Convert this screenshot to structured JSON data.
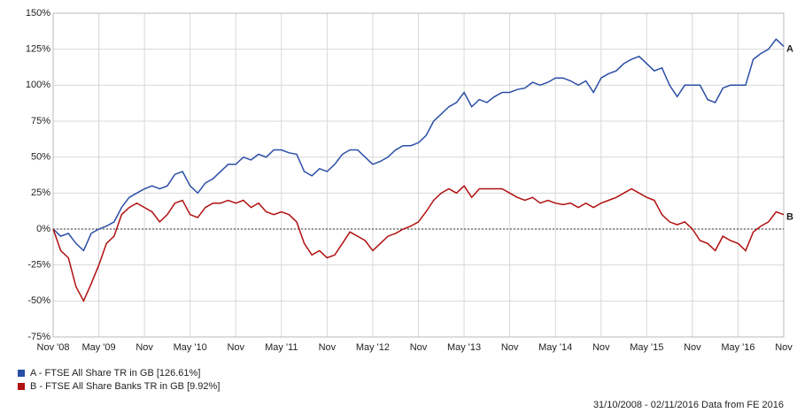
{
  "chart_data": {
    "type": "line",
    "x": [
      "Nov '08",
      "Dec '08",
      "Jan '09",
      "Feb '09",
      "Mar '09",
      "Apr '09",
      "May '09",
      "Jun '09",
      "Jul '09",
      "Aug '09",
      "Sep '09",
      "Oct '09",
      "Nov '09",
      "Dec '09",
      "Jan '10",
      "Feb '10",
      "Mar '10",
      "Apr '10",
      "May '10",
      "Jun '10",
      "Jul '10",
      "Aug '10",
      "Sep '10",
      "Oct '10",
      "Nov '10",
      "Dec '10",
      "Jan '11",
      "Feb '11",
      "Mar '11",
      "Apr '11",
      "May '11",
      "Jun '11",
      "Jul '11",
      "Aug '11",
      "Sep '11",
      "Oct '11",
      "Nov '11",
      "Dec '11",
      "Jan '12",
      "Feb '12",
      "Mar '12",
      "Apr '12",
      "May '12",
      "Jun '12",
      "Jul '12",
      "Aug '12",
      "Sep '12",
      "Oct '12",
      "Nov '12",
      "Dec '12",
      "Jan '13",
      "Feb '13",
      "Mar '13",
      "Apr '13",
      "May '13",
      "Jun '13",
      "Jul '13",
      "Aug '13",
      "Sep '13",
      "Oct '13",
      "Nov '13",
      "Dec '13",
      "Jan '14",
      "Feb '14",
      "Mar '14",
      "Apr '14",
      "May '14",
      "Jun '14",
      "Jul '14",
      "Aug '14",
      "Sep '14",
      "Oct '14",
      "Nov '14",
      "Dec '14",
      "Jan '15",
      "Feb '15",
      "Mar '15",
      "Apr '15",
      "May '15",
      "Jun '15",
      "Jul '15",
      "Aug '15",
      "Sep '15",
      "Oct '15",
      "Nov '15",
      "Dec '15",
      "Jan '16",
      "Feb '16",
      "Mar '16",
      "Apr '16",
      "May '16",
      "Jun '16",
      "Jul '16",
      "Aug '16",
      "Sep '16",
      "Oct '16",
      "Nov '16"
    ],
    "series": [
      {
        "name": "A - FTSE All Share TR in GB [126.61%]",
        "color": "#2a4ea6",
        "values": [
          0,
          -5,
          -3,
          -10,
          -15,
          -3,
          0,
          2,
          5,
          15,
          22,
          25,
          28,
          30,
          28,
          30,
          38,
          40,
          30,
          25,
          32,
          35,
          40,
          45,
          45,
          50,
          48,
          52,
          50,
          55,
          55,
          53,
          52,
          40,
          37,
          42,
          40,
          45,
          52,
          55,
          55,
          50,
          45,
          47,
          50,
          55,
          58,
          58,
          60,
          65,
          75,
          80,
          85,
          88,
          95,
          85,
          90,
          88,
          92,
          95,
          95,
          97,
          98,
          102,
          100,
          102,
          105,
          105,
          103,
          100,
          103,
          95,
          105,
          108,
          110,
          115,
          118,
          120,
          115,
          110,
          112,
          100,
          92,
          100,
          100,
          100,
          90,
          88,
          98,
          100,
          100,
          100,
          118,
          122,
          125,
          132,
          127
        ]
      },
      {
        "name": "B - FTSE All Share Banks TR in GB [9.92%]",
        "color": "#b01010",
        "values": [
          0,
          -15,
          -20,
          -40,
          -50,
          -38,
          -25,
          -10,
          -5,
          10,
          15,
          18,
          15,
          12,
          5,
          10,
          18,
          20,
          10,
          8,
          15,
          18,
          18,
          20,
          18,
          20,
          15,
          18,
          12,
          10,
          12,
          10,
          5,
          -10,
          -18,
          -15,
          -20,
          -18,
          -10,
          -2,
          -5,
          -8,
          -15,
          -10,
          -5,
          -3,
          0,
          2,
          5,
          12,
          20,
          25,
          28,
          25,
          30,
          22,
          28,
          28,
          28,
          28,
          25,
          22,
          20,
          22,
          18,
          20,
          18,
          17,
          18,
          15,
          18,
          15,
          18,
          20,
          22,
          25,
          28,
          25,
          22,
          20,
          10,
          5,
          3,
          5,
          0,
          -8,
          -10,
          -15,
          -5,
          -8,
          -10,
          -15,
          -2,
          2,
          5,
          12,
          10
        ]
      }
    ],
    "annotations": [
      "A",
      "B"
    ],
    "ylim": [
      -75,
      150
    ],
    "yticks": [
      {
        "value": -75,
        "label": "-75%"
      },
      {
        "value": -50,
        "label": "-50%"
      },
      {
        "value": -25,
        "label": "-25%"
      },
      {
        "value": 0,
        "label": "0%"
      },
      {
        "value": 25,
        "label": "25%"
      },
      {
        "value": 50,
        "label": "50%"
      },
      {
        "value": 75,
        "label": "75%"
      },
      {
        "value": 100,
        "label": "100%"
      },
      {
        "value": 125,
        "label": "125%"
      },
      {
        "value": 150,
        "label": "150%"
      }
    ],
    "xticks": [
      {
        "value": 0,
        "label": "Nov '08"
      },
      {
        "value": 6,
        "label": "May '09"
      },
      {
        "value": 12,
        "label": "Nov"
      },
      {
        "value": 18,
        "label": "May '10"
      },
      {
        "value": 24,
        "label": "Nov"
      },
      {
        "value": 30,
        "label": "May '11"
      },
      {
        "value": 36,
        "label": "Nov"
      },
      {
        "value": 42,
        "label": "May '12"
      },
      {
        "value": 48,
        "label": "Nov"
      },
      {
        "value": 54,
        "label": "May '13"
      },
      {
        "value": 60,
        "label": "Nov"
      },
      {
        "value": 66,
        "label": "May '14"
      },
      {
        "value": 72,
        "label": "Nov"
      },
      {
        "value": 78,
        "label": "May '15"
      },
      {
        "value": 84,
        "label": "Nov"
      },
      {
        "value": 90,
        "label": "May '16"
      },
      {
        "value": 96,
        "label": "Nov"
      }
    ],
    "grid": true,
    "source": "31/10/2008 - 02/11/2016 Data from FE 2016"
  }
}
